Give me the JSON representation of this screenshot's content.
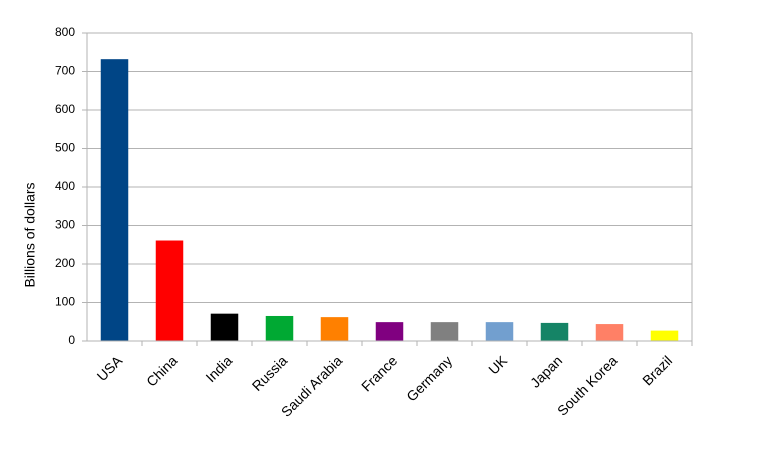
{
  "chart_data": {
    "type": "bar",
    "y_label": "Billions of dollars",
    "categories": [
      "USA",
      "China",
      "India",
      "Russia",
      "Saudi Arabia",
      "France",
      "Germany",
      "UK",
      "Japan",
      "South Korea",
      "Brazil"
    ],
    "values": [
      732,
      261,
      71,
      65,
      62,
      49,
      49,
      49,
      47,
      44,
      27
    ],
    "colors": [
      "#004586",
      "#ff0000",
      "#000000",
      "#00a933",
      "#ff8000",
      "#800080",
      "#808080",
      "#729fcf",
      "#158466",
      "#ff8066",
      "#ffff00"
    ],
    "ylim": [
      0,
      800
    ],
    "yticks": [
      0,
      100,
      200,
      300,
      400,
      500,
      600,
      700,
      800
    ],
    "grid": true
  }
}
